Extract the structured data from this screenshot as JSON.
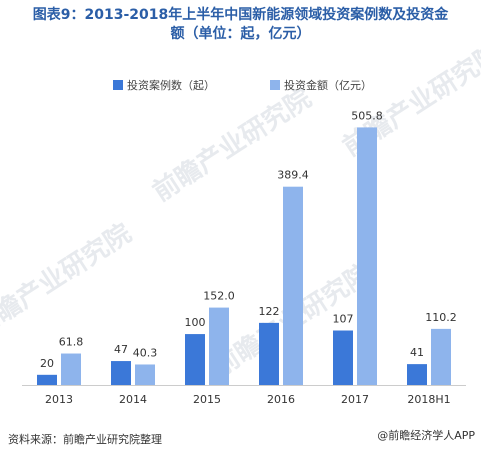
{
  "title_line1": "图表9：2013-2018年上半年中国新能源领域投资案例数及投资金",
  "title_line2": "额（单位：起，亿元）",
  "source": "资料来源：前瞻产业研究院整理",
  "app_badge": "@前瞻经济学人APP",
  "app_logo_text": "",
  "watermarks": [
    "前瞻产业研究院",
    "前瞻产业研究院",
    "前瞻产业研究院",
    "前瞻产业研究院"
  ],
  "colors": {
    "title": "#2b5ea7",
    "series1": "#3b78d8",
    "series2": "#8eb4ec",
    "axis": "#cccccc"
  },
  "chart_data": {
    "type": "bar",
    "title": "图表9：2013-2018年上半年中国新能源领域投资案例数及投资金额（单位：起，亿元）",
    "categories": [
      "2013",
      "2014",
      "2015",
      "2016",
      "2017",
      "2018H1"
    ],
    "series": [
      {
        "name": "投资案例数（起）",
        "values": [
          20,
          47,
          100,
          122,
          107,
          41
        ]
      },
      {
        "name": "投资金额（亿元）",
        "values": [
          61.8,
          40.3,
          152.0,
          389.4,
          505.8,
          110.2
        ]
      }
    ],
    "value_labels": [
      [
        "20",
        "47",
        "100",
        "122",
        "107",
        "41"
      ],
      [
        "61.8",
        "40.3",
        "152.0",
        "389.4",
        "505.8",
        "110.2"
      ]
    ],
    "ylim": [
      0,
      540
    ],
    "grid": false,
    "legend_position": "top-center"
  }
}
